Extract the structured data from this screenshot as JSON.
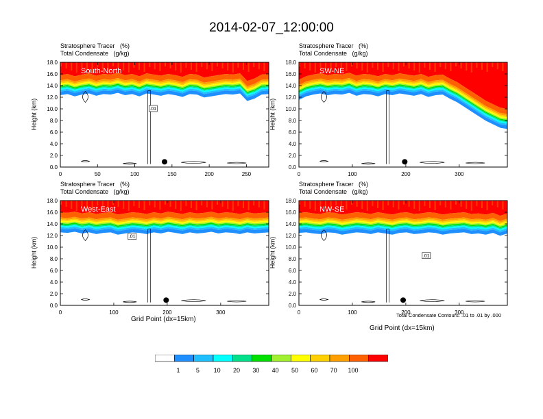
{
  "title": "2014-02-07_12:00:00",
  "header_line1": "Stratosphere Tracer   (%)",
  "header_line2": "Total Condensate   (g/kg)",
  "ylabel": "Height (km)",
  "xlabel": "Grid Point (dx=15km)",
  "contour_note": "Total Condensate Contours: .01 to .01 by .000",
  "chart_data": [
    {
      "type": "heatmap",
      "title": "South-North",
      "xlabel": "",
      "ylabel": "Height (km)",
      "xlim": [
        0,
        280
      ],
      "ylim": [
        0.0,
        18.0
      ],
      "xticks": [
        0,
        50,
        100,
        150,
        200,
        250
      ],
      "yticks": [
        "0.0",
        "2.0",
        "4.0",
        "6.0",
        "8.0",
        "10.0",
        "12.0",
        "14.0",
        "16.0",
        "18.0"
      ],
      "marker_x": 140,
      "contour_label": ".01",
      "contour_label_pos": [
        120,
        10.0
      ],
      "tropopause_km": [
        15.8,
        16.0,
        15.6,
        15.9,
        16.1,
        15.7,
        16.0,
        15.9,
        16.2,
        15.8,
        16.0,
        15.6,
        16.1,
        15.9,
        15.7,
        16.0,
        15.8,
        15.5,
        16.0,
        15.9,
        15.4,
        15.6,
        15.8,
        16.0,
        15.9,
        16.1,
        14.8,
        15.2,
        15.9,
        16.0
      ]
    },
    {
      "type": "heatmap",
      "title": "SW-NE",
      "xlabel": "",
      "ylabel": "Height (km)",
      "xlim": [
        0,
        390
      ],
      "ylim": [
        0.0,
        18.0
      ],
      "xticks": [
        0,
        100,
        200,
        300
      ],
      "yticks": [
        "0.0",
        "2.0",
        "4.0",
        "6.0",
        "8.0",
        "10.0",
        "12.0",
        "14.0",
        "16.0",
        "18.0"
      ],
      "marker_x": 198,
      "tropopause_km": [
        15.0,
        15.6,
        15.9,
        16.1,
        15.8,
        16.0,
        15.9,
        16.2,
        15.7,
        16.0,
        15.9,
        15.6,
        16.0,
        15.8,
        16.1,
        15.9,
        15.7,
        16.0,
        15.5,
        15.8,
        15.9,
        15.2,
        14.6,
        13.8,
        13.0,
        12.2,
        11.4,
        10.8,
        10.2,
        10.0
      ]
    },
    {
      "type": "heatmap",
      "title": "West-East",
      "xlabel": "Grid Point (dx=15km)",
      "ylabel": "Height (km)",
      "xlim": [
        0,
        390
      ],
      "ylim": [
        0.0,
        18.0
      ],
      "xticks": [
        0,
        100,
        200,
        300
      ],
      "yticks": [
        "0.0",
        "2.0",
        "4.0",
        "6.0",
        "8.0",
        "10.0",
        "12.0",
        "14.0",
        "16.0",
        "18.0"
      ],
      "marker_x": 198,
      "contour_label": ".01",
      "contour_label_pos": [
        128,
        11.8
      ],
      "tropopause_km": [
        16.0,
        15.9,
        16.1,
        15.8,
        16.0,
        15.7,
        15.9,
        16.0,
        15.6,
        15.8,
        16.0,
        15.9,
        15.7,
        16.0,
        15.8,
        16.1,
        15.9,
        15.7,
        16.0,
        15.8,
        15.9,
        16.1,
        15.8,
        16.0,
        15.9,
        15.7,
        16.0,
        15.8,
        15.9,
        16.0
      ]
    },
    {
      "type": "heatmap",
      "title": "NW-SE",
      "xlabel": "Grid Point (dx=15km)",
      "ylabel": "Height (km)",
      "xlim": [
        0,
        390
      ],
      "ylim": [
        0.0,
        18.0
      ],
      "xticks": [
        0,
        100,
        200,
        300
      ],
      "yticks": [
        "0.0",
        "2.0",
        "4.0",
        "6.0",
        "8.0",
        "10.0",
        "12.0",
        "14.0",
        "16.0",
        "18.0"
      ],
      "marker_x": 195,
      "contour_label": ".01",
      "contour_label_pos": [
        232,
        8.5
      ],
      "tropopause_km": [
        15.9,
        16.0,
        15.8,
        15.7,
        16.0,
        15.9,
        15.6,
        15.8,
        16.0,
        15.9,
        15.7,
        16.0,
        15.8,
        15.6,
        15.9,
        16.0,
        15.7,
        15.8,
        16.0,
        15.9,
        15.6,
        15.8,
        15.9,
        16.0,
        15.7,
        15.8,
        15.6,
        15.9,
        15.4,
        15.8
      ]
    }
  ],
  "colorbar": {
    "levels": [
      "1",
      "5",
      "10",
      "20",
      "30",
      "40",
      "50",
      "60",
      "70",
      "100"
    ],
    "colors": [
      "#ffffff",
      "#1f8fff",
      "#1fbfff",
      "#00ffff",
      "#00e08a",
      "#00e000",
      "#a0f030",
      "#ffff00",
      "#ffd000",
      "#ffa000",
      "#ff6000",
      "#ff0000"
    ]
  }
}
